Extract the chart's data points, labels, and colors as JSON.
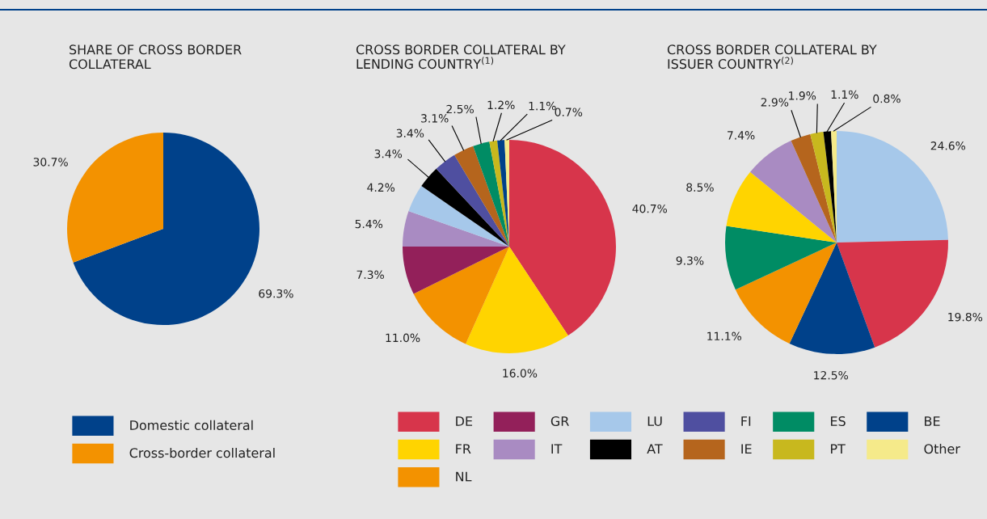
{
  "chart_data": [
    {
      "type": "pie",
      "title": "SHARE OF CROSS BORDER\nCOLLATERAL",
      "categories": [
        "Domestic collateral",
        "Cross-border collateral"
      ],
      "values": [
        69.3,
        30.7
      ],
      "colors": [
        "#00418a",
        "#f39200"
      ],
      "value_labels": [
        "69.3%",
        "30.7%"
      ],
      "legend": "bottom"
    },
    {
      "type": "pie",
      "title": "CROSS BORDER COLLATERAL BY\nLENDING COUNTRY$^{(1)}$",
      "categories": [
        "DE",
        "FR",
        "NL",
        "GR",
        "IT",
        "LU",
        "AT",
        "FI",
        "IE",
        "ES",
        "PT",
        "BE",
        "Other"
      ],
      "values": [
        40.7,
        16.0,
        11.0,
        7.3,
        5.4,
        4.2,
        3.4,
        3.4,
        3.1,
        2.5,
        1.2,
        1.1,
        0.7
      ],
      "colors": [
        "#d7354b",
        "#ffd400",
        "#f39200",
        "#93205a",
        "#a98bc2",
        "#a6c8ea",
        "#000000",
        "#4f4fa0",
        "#b5651d",
        "#008c64",
        "#c8b81e",
        "#00418a",
        "#f5ea8a"
      ],
      "value_labels": [
        "40.7%",
        "16.0%",
        "11.0%",
        "7.3%",
        "5.4%",
        "4.2%",
        "3.4%",
        "3.4%",
        "3.1%",
        "2.5%",
        "1.2%",
        "1.1%",
        "0.7%"
      ],
      "legend": "bottom"
    },
    {
      "type": "pie",
      "title": "CROSS BORDER COLLATERAL BY\nISSUER COUNTRY$^{(2)}$",
      "categories": [
        null,
        null,
        null,
        null,
        null,
        null,
        null,
        null,
        null,
        null,
        null
      ],
      "values": [
        24.6,
        19.8,
        12.5,
        11.1,
        9.3,
        8.5,
        7.4,
        2.9,
        1.9,
        1.1,
        0.8
      ],
      "colors": [
        "#a6c8ea",
        "#d7354b",
        "#00418a",
        "#f39200",
        "#008c64",
        "#ffd400",
        "#a98bc2",
        "#b5651d",
        "#c8b81e",
        "#000000",
        "#f5ea8a"
      ],
      "value_labels": [
        "24.6%",
        "19.8%",
        "12.5%",
        "11.1%",
        "9.3%",
        "8.5%",
        "7.4%",
        "2.9%",
        "1.9%",
        "1.1%",
        "0.8%"
      ]
    }
  ]
}
